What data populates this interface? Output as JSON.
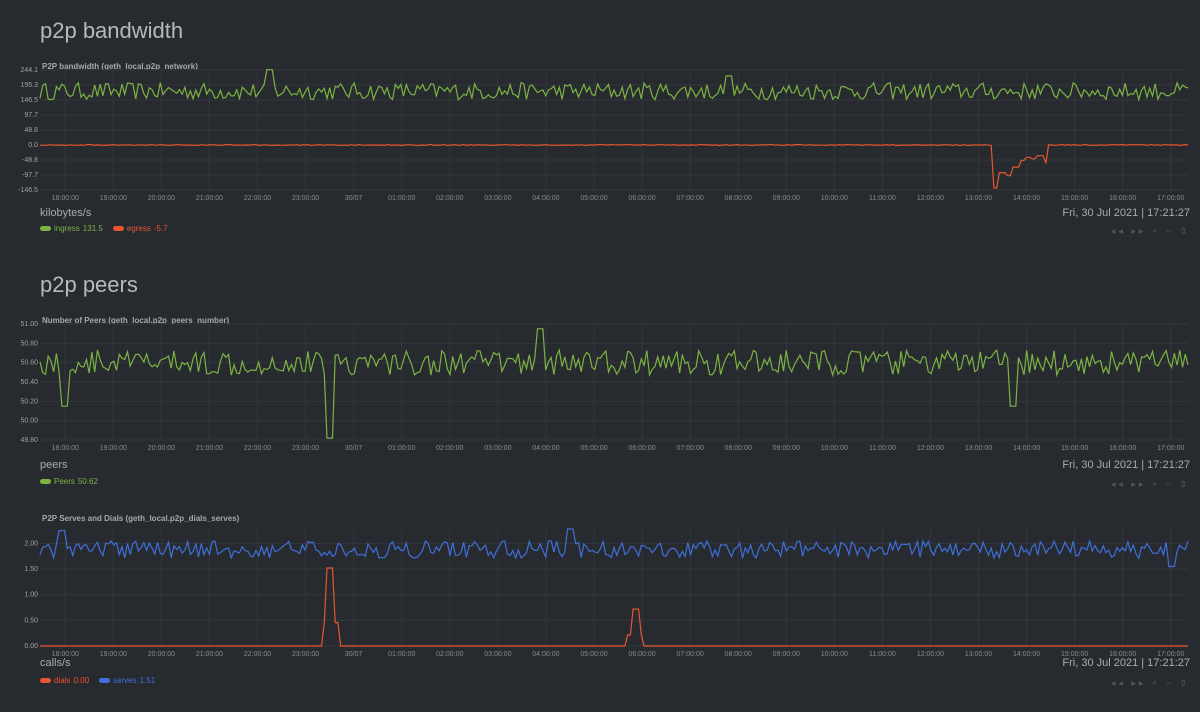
{
  "sections": [
    {
      "title": "p2p bandwidth"
    },
    {
      "title": "p2p peers"
    }
  ],
  "x_ticks": [
    "18:00:00",
    "19:00:00",
    "20:00:00",
    "21:00:00",
    "22:00:00",
    "23:00:00",
    "30/07",
    "01:00:00",
    "02:00:00",
    "03:00:00",
    "04:00:00",
    "05:00:00",
    "06:00:00",
    "07:00:00",
    "08:00:00",
    "09:00:00",
    "10:00:00",
    "11:00:00",
    "12:00:00",
    "13:00:00",
    "14:00:00",
    "15:00:00",
    "16:00:00",
    "17:00:00"
  ],
  "timestamp": "Fri, 30 Jul 2021 | 17:21:27",
  "zoom_controls": "◂◂ ▸▸ + − ⇕",
  "colors": {
    "green": "#7cb342",
    "orange": "#e9552e",
    "blue": "#3f6fd8",
    "grid": "#33373d"
  },
  "charts": {
    "bandwidth": {
      "title": "P2P bandwidth (geth_local.p2p_network)",
      "units": "kilobytes/s",
      "legend": [
        {
          "name": "ingress",
          "value": "131.5",
          "color": "#7cb342"
        },
        {
          "name": "egress",
          "value": "-5.7",
          "color": "#e9552e"
        }
      ],
      "chart_data": {
        "type": "line",
        "y_ticks": [
          "244.1",
          "195.3",
          "146.5",
          "97.7",
          "48.8",
          "0.0",
          "-48.8",
          "-97.7",
          "-146.5"
        ],
        "ylim": [
          -146.5,
          244.1
        ],
        "series": [
          {
            "name": "ingress",
            "baseline": 175,
            "noise": 28,
            "spikes": [
              [
                0.2,
                245
              ],
              [
                0.6,
                225
              ]
            ]
          },
          {
            "name": "egress",
            "baseline": 0,
            "noise": 1.5,
            "spikes": [
              [
                0.8335,
                -140
              ],
              [
                0.839,
                -90
              ],
              [
                0.845,
                -100
              ],
              [
                0.851,
                -72
              ],
              [
                0.857,
                -50
              ],
              [
                0.862,
                -40
              ],
              [
                0.867,
                -45
              ],
              [
                0.872,
                -35
              ]
            ]
          }
        ]
      }
    },
    "peers": {
      "title": "Number of Peers (geth_local.p2p_peers_number)",
      "units": "peers",
      "legend": [
        {
          "name": "Peers",
          "value": "50.62",
          "color": "#7cb342"
        }
      ],
      "chart_data": {
        "type": "line",
        "y_ticks": [
          "51.00",
          "50.80",
          "50.60",
          "50.40",
          "50.20",
          "50.00",
          "49.80"
        ],
        "ylim": [
          49.8,
          51.0
        ],
        "series": [
          {
            "name": "Peers",
            "baseline": 50.6,
            "noise": 0.13,
            "spikes": [
              [
                0.022,
                50.15
              ],
              [
                0.253,
                49.82
              ],
              [
                0.436,
                50.95
              ],
              [
                0.848,
                50.15
              ]
            ]
          }
        ]
      }
    },
    "dials": {
      "title": "P2P Serves and Dials (geth_local.p2p_dials_serves)",
      "units": "calls/s",
      "legend": [
        {
          "name": "dials",
          "value": "0.00",
          "color": "#e9552e"
        },
        {
          "name": "serves",
          "value": "1.51",
          "color": "#3f6fd8"
        }
      ],
      "chart_data": {
        "type": "line",
        "y_ticks": [
          "2.00",
          "1.50",
          "1.00",
          "0.50",
          "0.00"
        ],
        "ylim": [
          0,
          2.3
        ],
        "series": [
          {
            "name": "dials",
            "baseline": 0,
            "noise": 0,
            "spikes": [
              [
                0.253,
                1.52
              ],
              [
                0.518,
                0.72
              ]
            ]
          },
          {
            "name": "serves",
            "baseline": 1.88,
            "noise": 0.17,
            "spikes": [
              [
                0.02,
                2.25
              ],
              [
                0.462,
                2.28
              ],
              [
                0.985,
                1.55
              ]
            ]
          }
        ]
      }
    }
  }
}
